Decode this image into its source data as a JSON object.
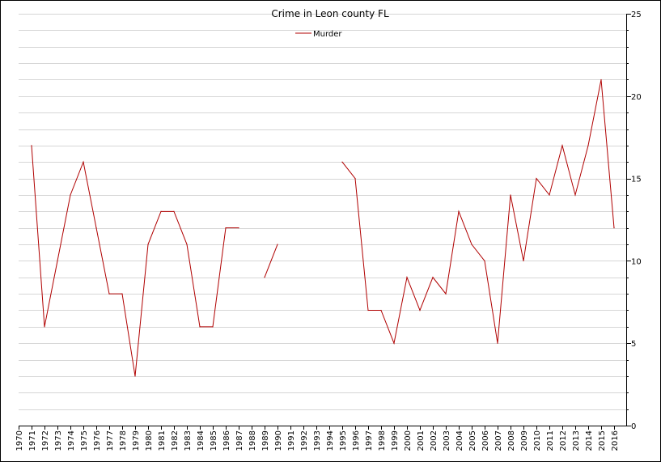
{
  "chart_data": {
    "type": "line",
    "title": "Crime in Leon county FL",
    "xlabel": "",
    "ylabel": "",
    "ylim": [
      0,
      25
    ],
    "y_ticks": [
      0,
      5,
      10,
      15,
      20,
      25
    ],
    "y_axis_side": "right",
    "grid": true,
    "legend_placement": "top-center",
    "categories": [
      "1970",
      "1971",
      "1972",
      "1973",
      "1974",
      "1975",
      "1976",
      "1977",
      "1978",
      "1979",
      "1980",
      "1981",
      "1982",
      "1983",
      "1984",
      "1985",
      "1986",
      "1987",
      "1988",
      "1989",
      "1990",
      "1991",
      "1992",
      "1993",
      "1994",
      "1995",
      "1996",
      "1997",
      "1998",
      "1999",
      "2000",
      "2001",
      "2002",
      "2003",
      "2004",
      "2005",
      "2006",
      "2007",
      "2008",
      "2009",
      "2010",
      "2011",
      "2012",
      "2013",
      "2014",
      "2015",
      "2016"
    ],
    "series": [
      {
        "name": "Murder",
        "color": "#b00000",
        "values": [
          null,
          17,
          6,
          10,
          14,
          16,
          12,
          8,
          8,
          3,
          11,
          13,
          13,
          11,
          6,
          6,
          12,
          12,
          null,
          9,
          11,
          null,
          null,
          null,
          null,
          16,
          15,
          7,
          7,
          5,
          9,
          7,
          9,
          8,
          13,
          11,
          10,
          5,
          14,
          10,
          15,
          14,
          17,
          14,
          17,
          21,
          12
        ]
      }
    ]
  }
}
